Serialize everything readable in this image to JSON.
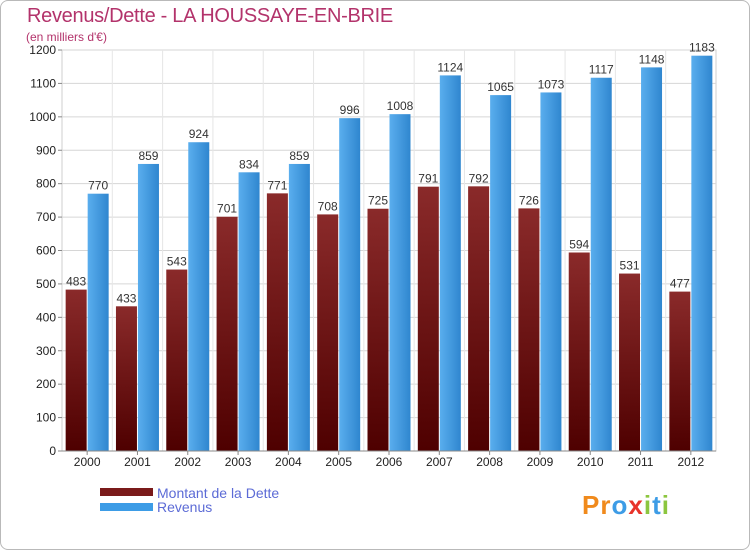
{
  "header": {
    "title": "Revenus/Dette - LA HOUSSAYE-EN-BRIE",
    "subtitle": "(en milliers d'€)"
  },
  "legend": {
    "items": [
      {
        "label": "Montant de la Dette",
        "color": "#7a1a1a"
      },
      {
        "label": "Revenus",
        "color": "#3d9ce6"
      }
    ]
  },
  "logo": {
    "letters": [
      {
        "ch": "P",
        "color": "#f08a1c"
      },
      {
        "ch": "r",
        "color": "#f08a1c"
      },
      {
        "ch": "o",
        "color": "#3d9ce6"
      },
      {
        "ch": "x",
        "color": "#e8332a"
      },
      {
        "ch": "i",
        "color": "#8cc63f"
      },
      {
        "ch": "t",
        "color": "#3d9ce6"
      },
      {
        "ch": "i",
        "color": "#8cc63f"
      }
    ]
  },
  "chart_data": {
    "type": "bar",
    "title": "Revenus/Dette - LA HOUSSAYE-EN-BRIE",
    "subtitle": "(en milliers d'€)",
    "categories": [
      "2000",
      "2001",
      "2002",
      "2003",
      "2004",
      "2005",
      "2006",
      "2007",
      "2008",
      "2009",
      "2010",
      "2011",
      "2012"
    ],
    "series": [
      {
        "name": "Montant de la Dette",
        "color": "#7a1a1a",
        "values": [
          483,
          433,
          543,
          701,
          771,
          708,
          725,
          791,
          792,
          726,
          594,
          531,
          477
        ]
      },
      {
        "name": "Revenus",
        "color": "#3d9ce6",
        "values": [
          770,
          859,
          924,
          834,
          859,
          996,
          1008,
          1124,
          1065,
          1073,
          1117,
          1148,
          1183
        ]
      }
    ],
    "ylim": [
      0,
      1200
    ],
    "yticks": [
      0,
      100,
      200,
      300,
      400,
      500,
      600,
      700,
      800,
      900,
      1000,
      1100,
      1200
    ],
    "grid": true,
    "legend_position": "bottom-left"
  }
}
